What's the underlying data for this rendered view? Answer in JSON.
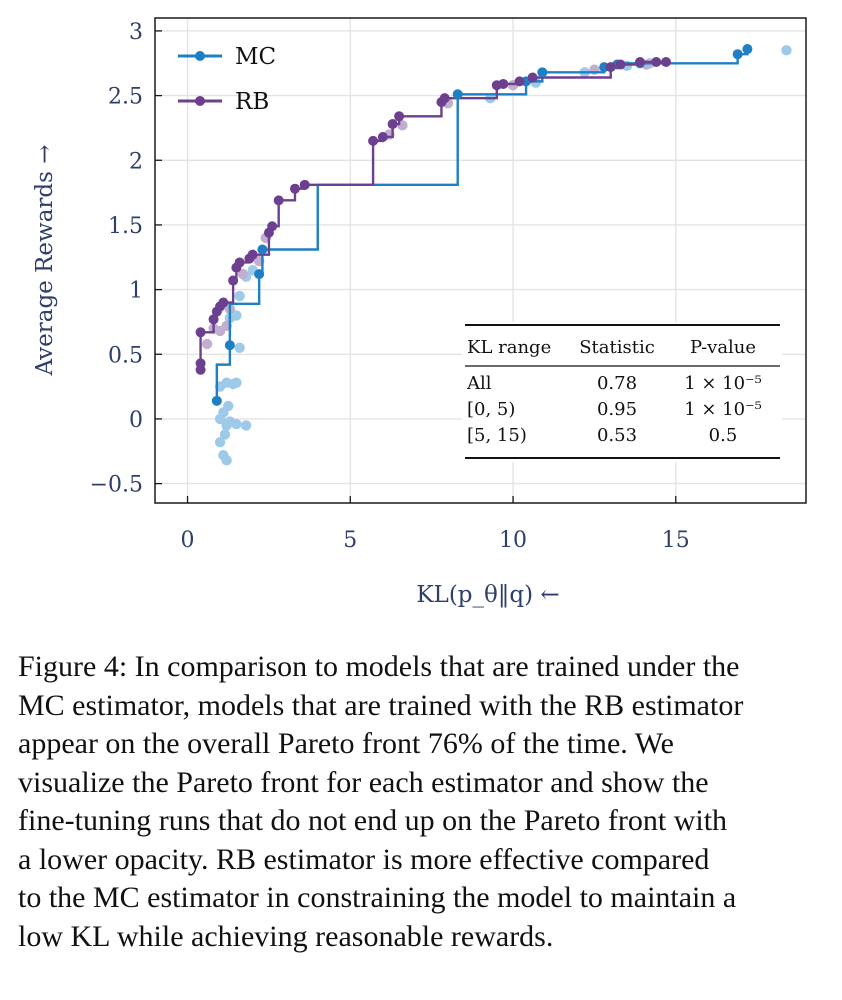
{
  "chart_data": {
    "type": "scatter",
    "xlabel": "KL(p_θ‖q) ←",
    "ylabel": "Average Rewards →",
    "xlim": [
      -1,
      19
    ],
    "ylim": [
      -0.65,
      3.1
    ],
    "xticks": [
      0,
      5,
      10,
      15
    ],
    "xtick_labels": [
      "0",
      "5",
      "10",
      "15"
    ],
    "yticks": [
      -0.5,
      0,
      0.5,
      1,
      1.5,
      2,
      2.5,
      3
    ],
    "ytick_labels": [
      "−0.5",
      "0",
      "0.5",
      "1",
      "1.5",
      "2",
      "2.5",
      "3"
    ],
    "grid": true,
    "legend_position": "top-left",
    "colors": {
      "MC": "#1f7fc4",
      "RB": "#6c3f8f",
      "MC_faded": "#9ecae9",
      "RB_faded": "#c2aed0",
      "axis_text": "#2f3f6b"
    },
    "series": [
      {
        "name": "MC",
        "step_front": [
          [
            0.9,
            0.14
          ],
          [
            0.9,
            0.42
          ],
          [
            1.3,
            0.57
          ],
          [
            1.3,
            0.89
          ],
          [
            2.2,
            1.12
          ],
          [
            2.3,
            1.31
          ],
          [
            4.0,
            1.81
          ],
          [
            8.3,
            2.51
          ],
          [
            10.4,
            2.61
          ],
          [
            10.9,
            2.68
          ],
          [
            12.8,
            2.72
          ],
          [
            13.3,
            2.75
          ],
          [
            16.9,
            2.82
          ],
          [
            17.2,
            2.86
          ]
        ],
        "front_points": [
          [
            0.9,
            0.14
          ],
          [
            1.3,
            0.57
          ],
          [
            2.2,
            1.12
          ],
          [
            2.3,
            1.31
          ],
          [
            8.3,
            2.51
          ],
          [
            10.4,
            2.61
          ],
          [
            10.9,
            2.68
          ],
          [
            12.8,
            2.72
          ],
          [
            13.2,
            2.74
          ],
          [
            13.9,
            2.75
          ],
          [
            16.9,
            2.82
          ],
          [
            17.2,
            2.86
          ]
        ],
        "faded_points": [
          [
            1.0,
            0.0
          ],
          [
            1.1,
            0.05
          ],
          [
            1.2,
            -0.05
          ],
          [
            1.3,
            -0.02
          ],
          [
            1.5,
            -0.04
          ],
          [
            1.8,
            -0.05
          ],
          [
            1.0,
            -0.18
          ],
          [
            1.1,
            -0.28
          ],
          [
            1.2,
            -0.32
          ],
          [
            1.15,
            -0.12
          ],
          [
            1.0,
            0.25
          ],
          [
            1.2,
            0.28
          ],
          [
            1.4,
            0.27
          ],
          [
            1.5,
            0.28
          ],
          [
            1.25,
            0.1
          ],
          [
            1.6,
            0.55
          ],
          [
            1.3,
            0.78
          ],
          [
            1.5,
            0.8
          ],
          [
            1.6,
            0.95
          ],
          [
            1.8,
            1.1
          ],
          [
            2.0,
            1.15
          ],
          [
            9.3,
            2.48
          ],
          [
            10.7,
            2.6
          ],
          [
            12.2,
            2.68
          ],
          [
            13.5,
            2.73
          ],
          [
            14.2,
            2.75
          ],
          [
            18.4,
            2.85
          ]
        ]
      },
      {
        "name": "RB",
        "step_front": [
          [
            0.4,
            0.38
          ],
          [
            0.4,
            0.67
          ],
          [
            0.8,
            0.77
          ],
          [
            0.9,
            0.83
          ],
          [
            1.0,
            0.87
          ],
          [
            1.1,
            0.9
          ],
          [
            1.4,
            1.07
          ],
          [
            1.5,
            1.17
          ],
          [
            1.6,
            1.21
          ],
          [
            1.9,
            1.24
          ],
          [
            2.0,
            1.27
          ],
          [
            2.5,
            1.44
          ],
          [
            2.6,
            1.49
          ],
          [
            2.8,
            1.69
          ],
          [
            3.3,
            1.78
          ],
          [
            3.6,
            1.81
          ],
          [
            5.7,
            2.15
          ],
          [
            6.0,
            2.18
          ],
          [
            6.3,
            2.28
          ],
          [
            6.5,
            2.34
          ],
          [
            7.8,
            2.45
          ],
          [
            7.9,
            2.48
          ],
          [
            9.5,
            2.58
          ],
          [
            9.7,
            2.59
          ],
          [
            10.2,
            2.61
          ],
          [
            10.6,
            2.64
          ],
          [
            13.0,
            2.72
          ],
          [
            13.3,
            2.74
          ],
          [
            13.9,
            2.76
          ],
          [
            14.4,
            2.76
          ],
          [
            14.7,
            2.76
          ]
        ],
        "front_points": [
          [
            0.4,
            0.38
          ],
          [
            0.4,
            0.43
          ],
          [
            0.4,
            0.67
          ],
          [
            0.8,
            0.77
          ],
          [
            0.9,
            0.83
          ],
          [
            1.0,
            0.87
          ],
          [
            1.1,
            0.9
          ],
          [
            1.4,
            1.07
          ],
          [
            1.5,
            1.17
          ],
          [
            1.6,
            1.21
          ],
          [
            1.9,
            1.24
          ],
          [
            2.0,
            1.27
          ],
          [
            2.5,
            1.44
          ],
          [
            2.6,
            1.49
          ],
          [
            2.8,
            1.69
          ],
          [
            3.3,
            1.78
          ],
          [
            3.6,
            1.81
          ],
          [
            5.7,
            2.15
          ],
          [
            6.0,
            2.18
          ],
          [
            6.3,
            2.28
          ],
          [
            6.5,
            2.34
          ],
          [
            7.8,
            2.45
          ],
          [
            7.9,
            2.48
          ],
          [
            9.5,
            2.58
          ],
          [
            9.7,
            2.59
          ],
          [
            10.2,
            2.61
          ],
          [
            10.6,
            2.64
          ],
          [
            13.0,
            2.72
          ],
          [
            13.3,
            2.74
          ],
          [
            13.9,
            2.76
          ],
          [
            14.4,
            2.76
          ],
          [
            14.7,
            2.76
          ]
        ],
        "faded_points": [
          [
            0.6,
            0.58
          ],
          [
            0.8,
            0.7
          ],
          [
            1.0,
            0.68
          ],
          [
            1.2,
            0.72
          ],
          [
            1.3,
            0.85
          ],
          [
            1.7,
            1.12
          ],
          [
            2.2,
            1.22
          ],
          [
            2.4,
            1.4
          ],
          [
            6.6,
            2.27
          ],
          [
            6.2,
            2.2
          ],
          [
            8.0,
            2.44
          ],
          [
            10.0,
            2.58
          ],
          [
            12.5,
            2.7
          ],
          [
            14.1,
            2.74
          ]
        ]
      }
    ],
    "table": {
      "headers": [
        "KL range",
        "Statistic",
        "P-value"
      ],
      "rows": [
        [
          "All",
          "0.78",
          "1 × 10⁻⁵"
        ],
        [
          "[0, 5)",
          "0.95",
          "1 × 10⁻⁵"
        ],
        [
          "[5, 15)",
          "0.53",
          "0.5"
        ]
      ]
    }
  },
  "caption_lines": [
    "Figure 4: In comparison to models that are trained under the",
    "MC estimator, models that are trained with the RB estimator",
    "appear on the overall Pareto front 76% of the time.  We",
    "visualize the Pareto front for each estimator and show the",
    "fine-tuning runs that do not end up on the Pareto front with",
    "a lower opacity. RB estimator is more effective compared",
    "to the MC estimator in constraining the model to maintain a",
    "low KL while achieving reasonable rewards."
  ]
}
